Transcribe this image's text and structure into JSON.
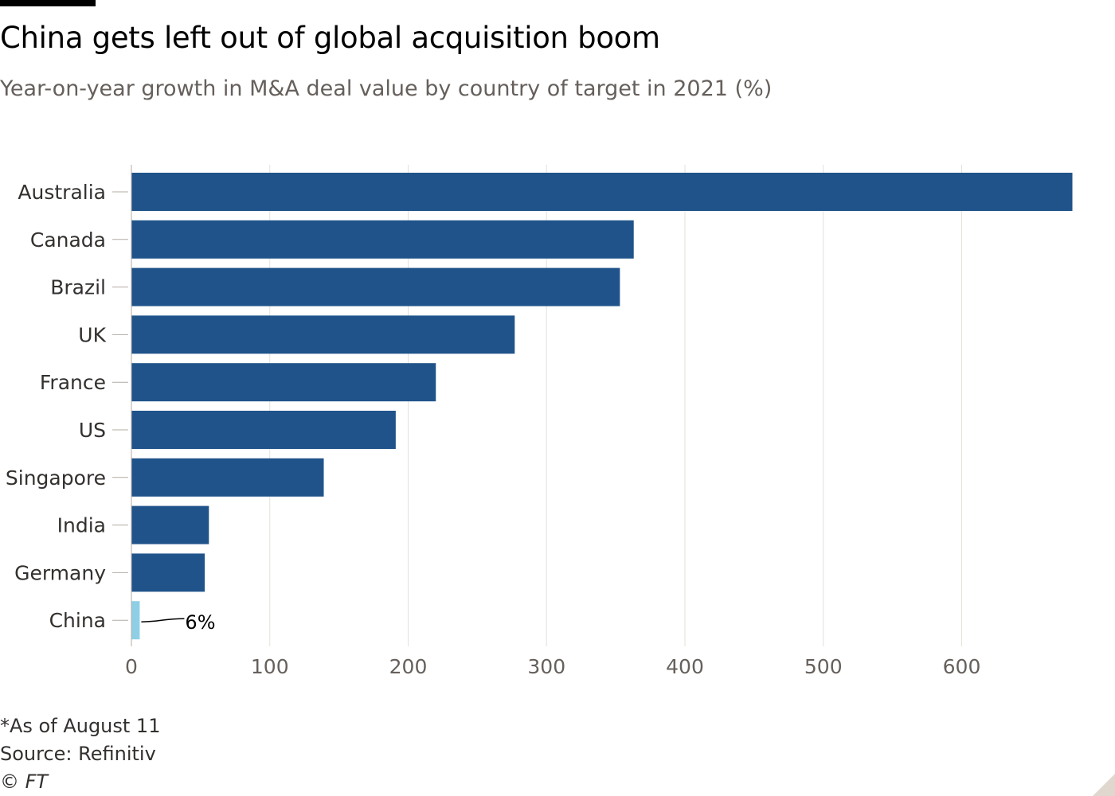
{
  "title": "China gets left out of global acquisition boom",
  "subtitle": "Year-on-year growth in M&A deal value by country of target in 2021 (%)",
  "footnote": "*As of August 11",
  "source": "Source: Refinitiv",
  "copyright": "© FT",
  "colors": {
    "bar": "#20538a",
    "highlight": "#8fcfe6",
    "grid": "#e5e0db",
    "axis_text": "#66605c",
    "label_text": "#33302e"
  },
  "chart_data": {
    "type": "bar",
    "orientation": "horizontal",
    "categories": [
      "Australia",
      "Canada",
      "Brazil",
      "UK",
      "France",
      "US",
      "Singapore",
      "India",
      "Germany",
      "China"
    ],
    "values": [
      680,
      363,
      353,
      277,
      220,
      191,
      139,
      56,
      53,
      6
    ],
    "highlight_category": "China",
    "annotation": {
      "category": "China",
      "text": "6%"
    },
    "xticks": [
      0,
      100,
      200,
      300,
      400,
      500,
      600
    ],
    "xlim": [
      0,
      680
    ],
    "grid": true
  }
}
